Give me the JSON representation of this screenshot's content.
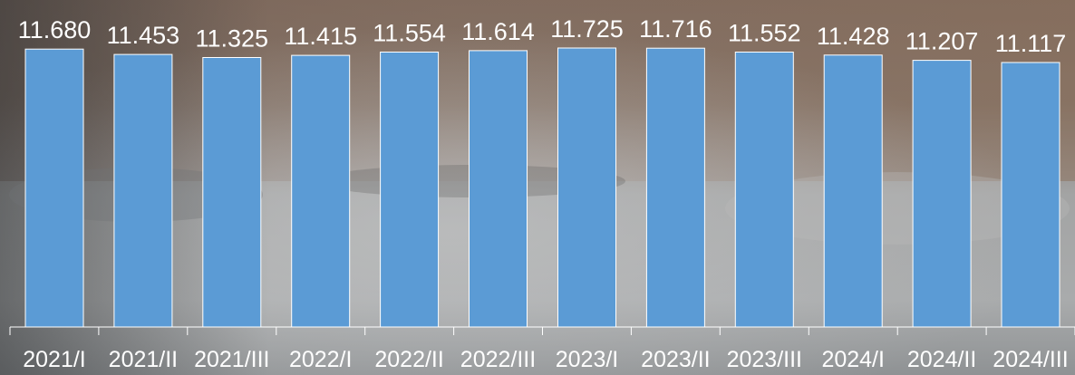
{
  "chart_data": {
    "type": "bar",
    "categories": [
      "2021/I",
      "2021/II",
      "2021/III",
      "2022/I",
      "2022/II",
      "2022/III",
      "2023/I",
      "2023/II",
      "2023/III",
      "2024/I",
      "2024/II",
      "2024/III"
    ],
    "values": [
      11680,
      11453,
      11325,
      11415,
      11554,
      11614,
      11725,
      11716,
      11552,
      11428,
      11207,
      11117
    ],
    "data_labels": [
      "11.680",
      "11.453",
      "11.325",
      "11.415",
      "11.554",
      "11.614",
      "11.725",
      "11.716",
      "11.552",
      "11.428",
      "11.207",
      "11.117"
    ],
    "title": "",
    "xlabel": "",
    "ylabel": "",
    "ylim": [
      0,
      11725
    ],
    "grid": false,
    "legend": "none",
    "colors": {
      "bar_fill": "#5b9bd5",
      "bar_stroke": "#ffffff",
      "label_text": "#ffffff",
      "axis_line": "#ffffff"
    }
  }
}
